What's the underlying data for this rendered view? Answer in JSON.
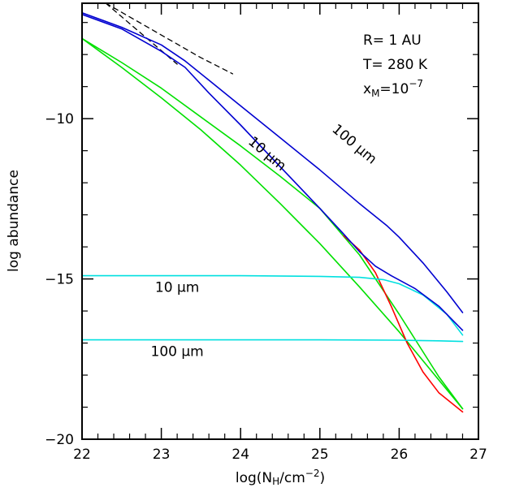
{
  "chart_data": {
    "type": "line",
    "xlabel": "log(N_H/cm^-2)",
    "ylabel": "log abundance",
    "xlim": [
      22,
      27
    ],
    "ylim": [
      -20,
      -6.4
    ],
    "x_ticks": [
      22,
      23,
      24,
      25,
      26,
      27
    ],
    "x_tick_labels": [
      "22",
      "23",
      "24",
      "25",
      "26",
      "27"
    ],
    "y_ticks": [
      -10,
      -15,
      -20
    ],
    "y_tick_labels": [
      "−10",
      "−15",
      "−20"
    ],
    "grid": false,
    "annotations": {
      "params": [
        "R= 1 AU",
        "T= 280 K",
        "x_M=10^-7"
      ],
      "labels": [
        {
          "text": "10 μm",
          "x": 24.3,
          "y": -11.2,
          "angle": 40
        },
        {
          "text": "100 μm",
          "x": 25.4,
          "y": -10.9,
          "angle": 40
        },
        {
          "text": "10 μm",
          "x": 23.2,
          "y": -15.4,
          "angle": 0
        },
        {
          "text": "100 μm",
          "x": 23.2,
          "y": -17.4,
          "angle": 0
        }
      ]
    },
    "series": [
      {
        "color": "#000000",
        "dash": true,
        "x": [
          22.3,
          23.2
        ],
        "y": [
          -6.4,
          -8.3
        ]
      },
      {
        "color": "#000000",
        "dash": true,
        "x": [
          22.3,
          23.5,
          23.9
        ],
        "y": [
          -6.4,
          -8.1,
          -8.6
        ]
      },
      {
        "color": "#00e000",
        "x": [
          22,
          22.5,
          23,
          23.5,
          24,
          24.5,
          25,
          25.5,
          26,
          26.5,
          26.8
        ],
        "y": [
          -7.5,
          -8.25,
          -9.05,
          -9.95,
          -10.85,
          -11.8,
          -12.8,
          -14.25,
          -16.1,
          -18.05,
          -19.05
        ]
      },
      {
        "color": "#00e000",
        "x": [
          22,
          22.5,
          23,
          23.5,
          24,
          24.5,
          25,
          25.5,
          26,
          26.5,
          26.8
        ],
        "y": [
          -7.5,
          -8.4,
          -9.35,
          -10.35,
          -11.45,
          -12.65,
          -13.9,
          -15.25,
          -16.65,
          -18.15,
          -19.05
        ]
      },
      {
        "color": "#ff0000",
        "x": [
          25.3,
          25.5,
          25.7,
          25.9,
          26.1,
          26.3,
          26.5,
          26.8
        ],
        "y": [
          -13.65,
          -14.1,
          -14.8,
          -15.85,
          -17.0,
          -17.9,
          -18.55,
          -19.15
        ]
      },
      {
        "color": "#00e0e0",
        "x": [
          22,
          23,
          24,
          25,
          25.5,
          25.8,
          26,
          26.3,
          26.6,
          26.8
        ],
        "y": [
          -14.9,
          -14.9,
          -14.9,
          -14.92,
          -14.95,
          -15.02,
          -15.15,
          -15.5,
          -16.1,
          -16.75
        ]
      },
      {
        "color": "#00e0e0",
        "x": [
          22,
          23,
          24,
          25,
          26,
          26.5,
          26.8
        ],
        "y": [
          -16.9,
          -16.9,
          -16.9,
          -16.9,
          -16.91,
          -16.93,
          -16.95
        ]
      },
      {
        "color": "#0000d0",
        "x": [
          22,
          22.5,
          23,
          23.3,
          23.6,
          24,
          24.5,
          25,
          25.5,
          25.85,
          26,
          26.3,
          26.6,
          26.8
        ],
        "y": [
          -6.7,
          -7.15,
          -7.7,
          -8.2,
          -8.8,
          -9.6,
          -10.6,
          -11.6,
          -12.65,
          -13.35,
          -13.7,
          -14.5,
          -15.4,
          -16.05
        ]
      },
      {
        "color": "#0000d0",
        "x": [
          22,
          22.5,
          23,
          23.3,
          23.6,
          24,
          24.5,
          25,
          25.3,
          25.5,
          25.7,
          25.9,
          26.2,
          26.5,
          26.8
        ],
        "y": [
          -6.75,
          -7.2,
          -7.9,
          -8.4,
          -9.2,
          -10.2,
          -11.5,
          -12.8,
          -13.6,
          -14.15,
          -14.6,
          -14.9,
          -15.3,
          -15.85,
          -16.6
        ]
      }
    ]
  }
}
